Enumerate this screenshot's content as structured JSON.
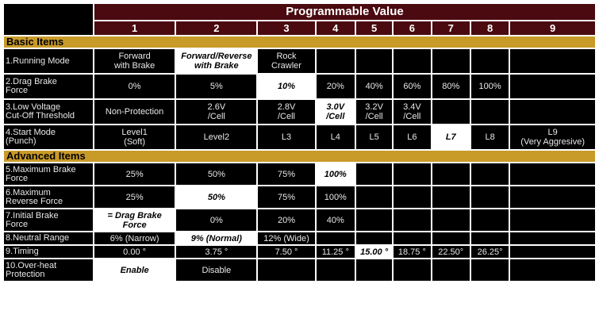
{
  "header": {
    "title": "Programmable Value",
    "columns": [
      "1",
      "2",
      "3",
      "4",
      "5",
      "6",
      "7",
      "8",
      "9"
    ]
  },
  "sections": {
    "basic": "Basic Items",
    "advanced": "Advanced Items"
  },
  "rows": [
    {
      "label": "1.Running Mode",
      "cells": [
        "Forward\nwith Brake",
        "Forward/Reverse\nwith Brake",
        "Rock\nCrawler",
        "",
        "",
        "",
        "",
        "",
        ""
      ],
      "default": 1
    },
    {
      "label": "2.Drag Brake\nForce",
      "cells": [
        "0%",
        "5%",
        "10%",
        "20%",
        "40%",
        "60%",
        "80%",
        "100%",
        ""
      ],
      "default": 2
    },
    {
      "label": "3.Low Voltage\nCut-Off Threshold",
      "cells": [
        "Non-Protection",
        "2.6V\n/Cell",
        "2.8V\n/Cell",
        "3.0V\n/Cell",
        "3.2V\n/Cell",
        "3.4V\n/Cell",
        "",
        "",
        ""
      ],
      "default": 3
    },
    {
      "label": "4.Start Mode\n(Punch)",
      "cells": [
        "Level1\n(Soft)",
        "Level2",
        "L3",
        "L4",
        "L5",
        "L6",
        "L7",
        "L8",
        "L9\n(Very Aggresive)"
      ],
      "default": 6
    },
    {
      "label": "5.Maximum Brake\nForce",
      "cells": [
        "25%",
        "50%",
        "75%",
        "100%",
        "",
        "",
        "",
        "",
        ""
      ],
      "default": 3
    },
    {
      "label": "6.Maximum\nReverse Force",
      "cells": [
        "25%",
        "50%",
        "75%",
        "100%",
        "",
        "",
        "",
        "",
        ""
      ],
      "default": 1
    },
    {
      "label": "7.Initial Brake\nForce",
      "cells": [
        "= Drag Brake\nForce",
        "0%",
        "20%",
        "40%",
        "",
        "",
        "",
        "",
        ""
      ],
      "default": 0
    },
    {
      "label": "8.Neutral Range",
      "cells": [
        "6% (Narrow)",
        "9% (Normal)",
        "12% (Wide)",
        "",
        "",
        "",
        "",
        "",
        ""
      ],
      "default": 1
    },
    {
      "label": "9.Timing",
      "cells": [
        "0.00 °",
        "3.75 °",
        "7.50 °",
        "11.25 °",
        "15.00 °",
        "18.75 °",
        "22.50°",
        "26.25°",
        ""
      ],
      "default": 4
    },
    {
      "label": "10.Over-heat\nProtection",
      "cells": [
        "Enable",
        "Disable",
        "",
        "",
        "",
        "",
        "",
        "",
        ""
      ],
      "default": 0
    }
  ],
  "colors": {
    "header_bg": "#4a0a10",
    "section_bg": "#c89a28",
    "cell_bg": "#000000",
    "default_bg": "#ffffff"
  }
}
